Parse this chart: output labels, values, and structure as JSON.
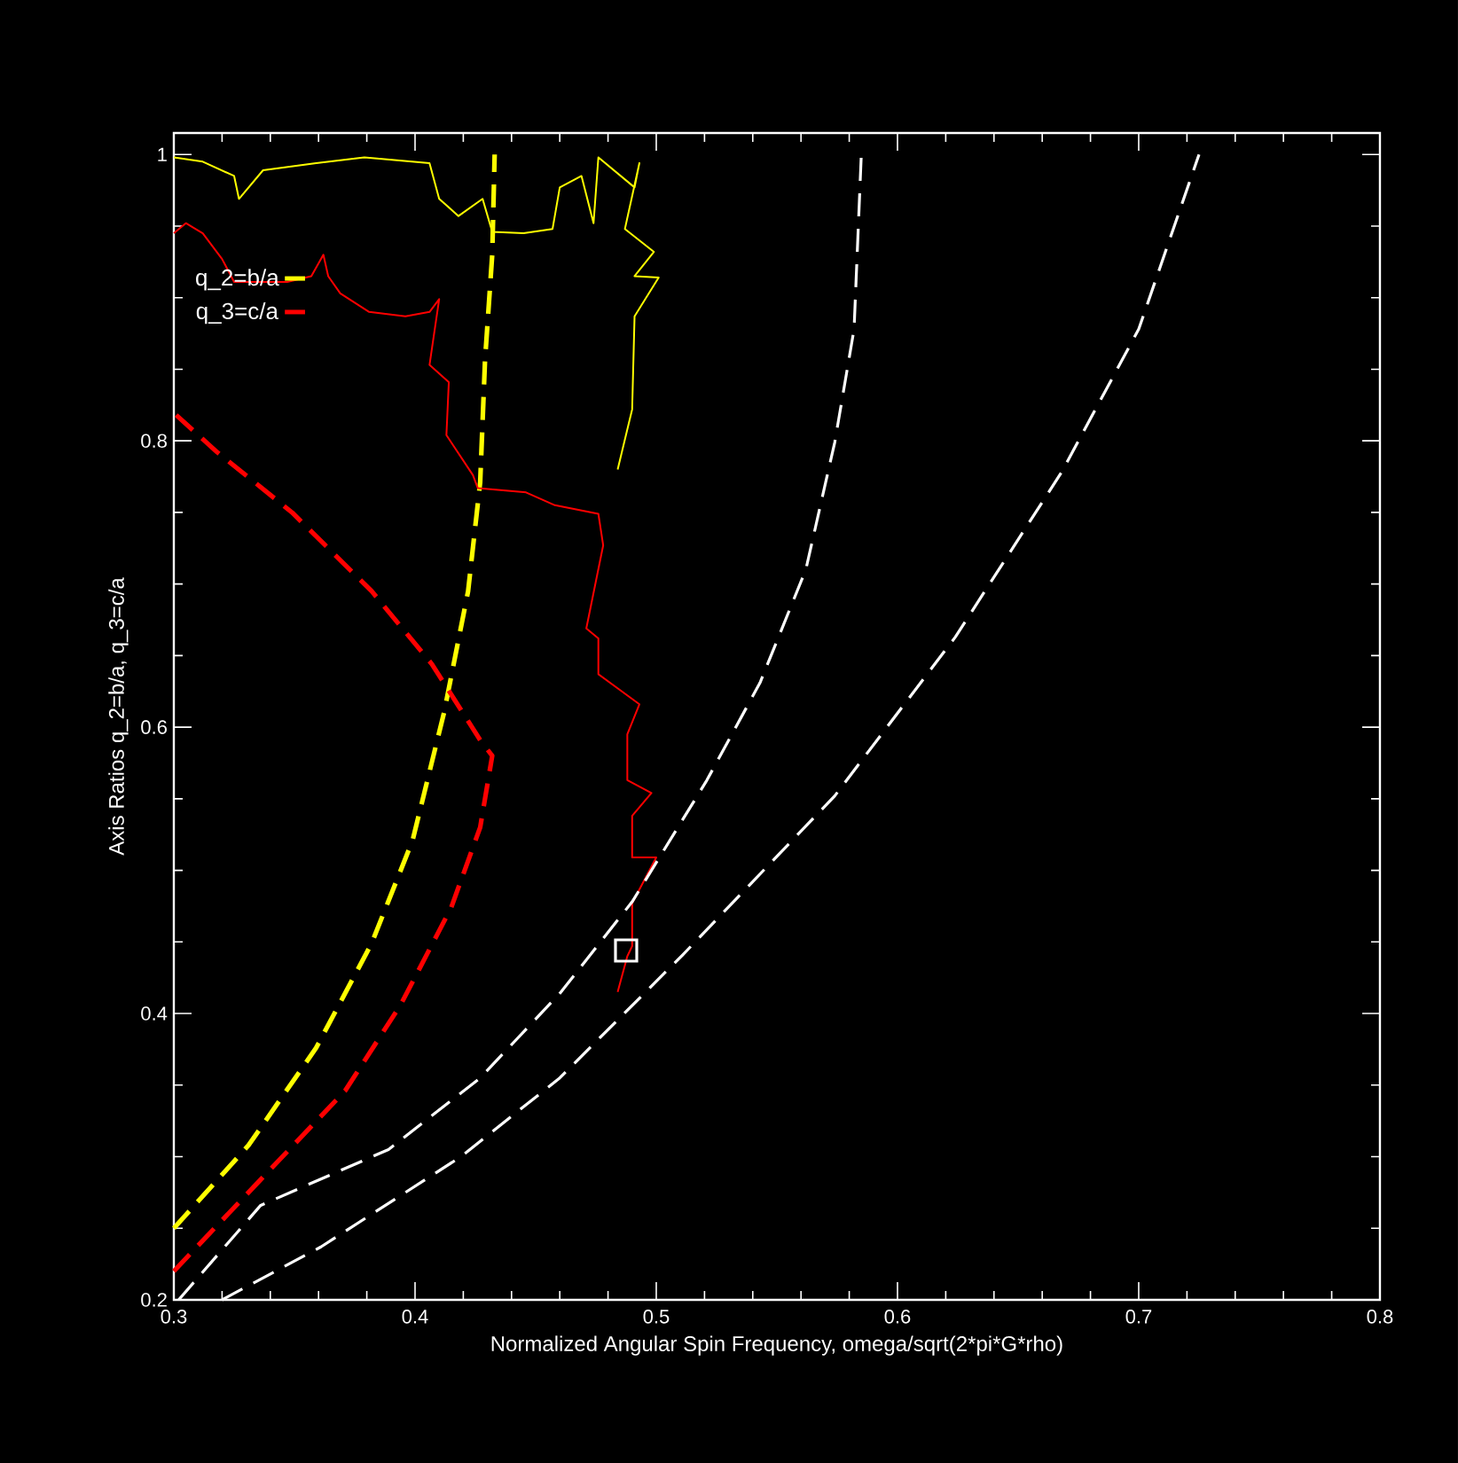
{
  "chart_data": {
    "type": "line",
    "xlabel": "Normalized Angular Spin Frequency, omega/sqrt(2*pi*G*rho)",
    "ylabel": "Axis Ratios q_2=b/a, q_3=c/a",
    "xlim": [
      0.3,
      0.8
    ],
    "ylim": [
      0.2,
      1.015
    ],
    "xticks": [
      0.3,
      0.4,
      0.5,
      0.6,
      0.7,
      0.8
    ],
    "yticks": [
      0.2,
      0.4,
      0.6,
      0.8,
      1
    ],
    "legend": "top left",
    "grid": false,
    "series": [
      {
        "name": "q_2=b/a",
        "color": "#ffff00",
        "line_style": "dashed",
        "x": [
          0.3,
          0.331,
          0.359,
          0.382,
          0.399,
          0.412,
          0.422,
          0.427,
          0.429,
          0.432,
          0.433
        ],
        "values": [
          0.25,
          0.308,
          0.376,
          0.449,
          0.521,
          0.61,
          0.695,
          0.771,
          0.856,
          0.93,
          1.0
        ]
      },
      {
        "name": "q_3=c/a",
        "color": "#ff0000",
        "line_style": "dashed",
        "x": [
          0.3,
          0.336,
          0.371,
          0.394,
          0.415,
          0.427,
          0.432,
          0.427,
          0.407,
          0.382,
          0.349,
          0.318,
          0.301
        ],
        "values": [
          0.22,
          0.284,
          0.346,
          0.406,
          0.474,
          0.53,
          0.58,
          0.591,
          0.644,
          0.695,
          0.75,
          0.792,
          0.818
        ]
      },
      {
        "color": "#ffff00",
        "line_style": "solid",
        "x": [
          0.3,
          0.312,
          0.325,
          0.327,
          0.337,
          0.359,
          0.379,
          0.406,
          0.41,
          0.418,
          0.428,
          0.432,
          0.445,
          0.457,
          0.46,
          0.469,
          0.474,
          0.476,
          0.491,
          0.493,
          0.487,
          0.499,
          0.491,
          0.501,
          0.491,
          0.49,
          0.484
        ],
        "values": [
          0.998,
          0.995,
          0.985,
          0.969,
          0.989,
          0.994,
          0.998,
          0.994,
          0.969,
          0.957,
          0.969,
          0.946,
          0.945,
          0.948,
          0.977,
          0.985,
          0.952,
          0.998,
          0.977,
          0.994,
          0.948,
          0.932,
          0.915,
          0.914,
          0.887,
          0.822,
          0.78
        ]
      },
      {
        "color": "#ff0000",
        "line_style": "solid",
        "x": [
          0.3,
          0.305,
          0.312,
          0.32,
          0.325,
          0.347,
          0.357,
          0.362,
          0.364,
          0.369,
          0.381,
          0.396,
          0.406,
          0.41,
          0.406,
          0.414,
          0.413,
          0.424,
          0.426,
          0.446,
          0.458,
          0.476,
          0.478,
          0.471,
          0.476,
          0.476,
          0.493,
          0.488,
          0.488,
          0.498,
          0.49,
          0.49,
          0.5,
          0.49,
          0.49,
          0.488,
          0.484
        ],
        "values": [
          0.945,
          0.952,
          0.945,
          0.927,
          0.911,
          0.911,
          0.915,
          0.93,
          0.915,
          0.903,
          0.89,
          0.887,
          0.89,
          0.899,
          0.853,
          0.841,
          0.804,
          0.776,
          0.767,
          0.764,
          0.755,
          0.749,
          0.727,
          0.669,
          0.662,
          0.637,
          0.616,
          0.595,
          0.563,
          0.554,
          0.538,
          0.509,
          0.509,
          0.477,
          0.447,
          0.44,
          0.415
        ]
      },
      {
        "color": "#ffffff",
        "line_style": "dashed",
        "x": [
          0.302,
          0.336,
          0.389,
          0.427,
          0.46,
          0.49,
          0.521,
          0.543,
          0.562,
          0.574,
          0.582,
          0.585
        ],
        "values": [
          0.2,
          0.266,
          0.305,
          0.355,
          0.414,
          0.478,
          0.563,
          0.631,
          0.71,
          0.799,
          0.878,
          1.0
        ]
      },
      {
        "color": "#ffffff",
        "line_style": "dashed",
        "x": [
          0.32,
          0.361,
          0.419,
          0.46,
          0.511,
          0.574,
          0.624,
          0.668,
          0.7,
          0.725
        ],
        "values": [
          0.2,
          0.237,
          0.3,
          0.355,
          0.441,
          0.552,
          0.663,
          0.778,
          0.878,
          1.0
        ]
      },
      {
        "type": "scatter",
        "marker": "square",
        "color": "#ffffff",
        "x": [
          0.4875
        ],
        "values": [
          0.444
        ]
      }
    ]
  }
}
